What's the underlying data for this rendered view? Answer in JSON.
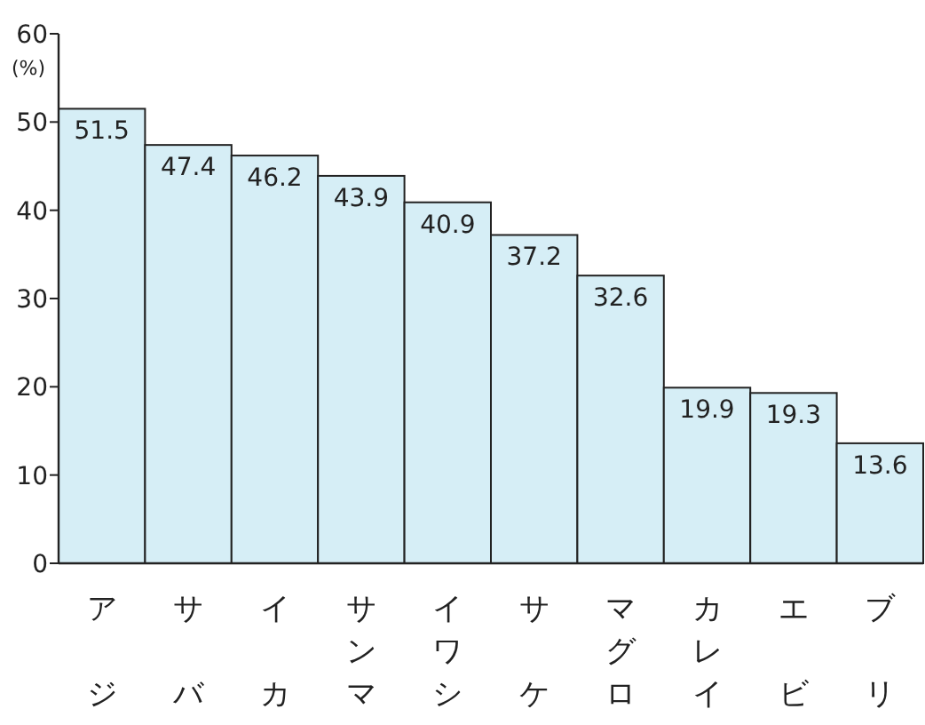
{
  "chart_data": {
    "type": "bar",
    "ylabel": "(%)",
    "categories": [
      "アジ",
      "サバ",
      "イカ",
      "サンマ",
      "イワシ",
      "サケ",
      "マグロ",
      "カレイ",
      "エビ",
      "ブリ"
    ],
    "values": [
      51.5,
      47.4,
      46.2,
      43.9,
      40.9,
      37.2,
      32.6,
      19.9,
      19.3,
      13.6
    ],
    "color": "#d6eef6",
    "ylim": [
      0,
      60
    ],
    "yticks": [
      0,
      10,
      20,
      30,
      40,
      50,
      60
    ],
    "data_labels": true
  }
}
